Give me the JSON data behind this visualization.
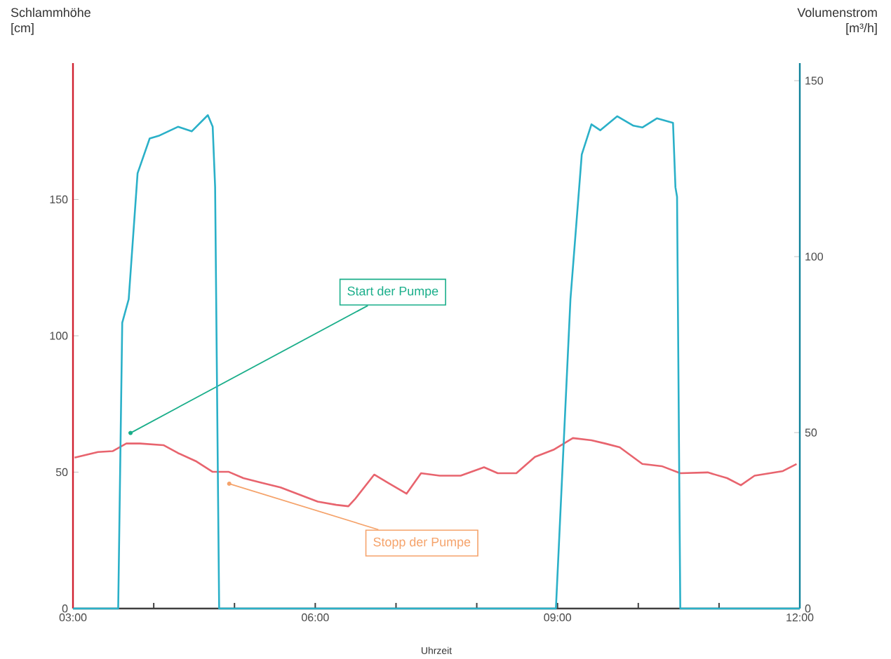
{
  "chart_data": {
    "type": "line",
    "xlabel": "Uhrzeit",
    "ylabel": "Schlammhöhe [cm]",
    "y2label": "Volumenstrom [m³/h]",
    "xlim": [
      3,
      12
    ],
    "xticks": [
      {
        "value": 3,
        "label": "03:00"
      },
      {
        "value": 4,
        "label": null
      },
      {
        "value": 5,
        "label": null
      },
      {
        "value": 6,
        "label": "06:00"
      },
      {
        "value": 7,
        "label": null
      },
      {
        "value": 8,
        "label": null
      },
      {
        "value": 9,
        "label": "09:00"
      },
      {
        "value": 10,
        "label": null
      },
      {
        "value": 11,
        "label": null
      },
      {
        "value": 12,
        "label": "12:00"
      }
    ],
    "ylim": [
      0,
      200
    ],
    "yticks": [
      0,
      50,
      100,
      150
    ],
    "y2lim": [
      0,
      155
    ],
    "y2ticks": [
      0,
      50,
      100,
      150
    ],
    "grid": false,
    "marker": "none",
    "line_style": "solid",
    "series": [
      {
        "color": "#e8646e",
        "x": [
          3.02,
          3.31,
          3.49,
          3.66,
          3.83,
          4.12,
          4.3,
          4.53,
          4.73,
          4.93,
          5.11,
          5.34,
          5.57,
          5.8,
          6.03,
          6.26,
          6.41,
          6.5,
          6.73,
          6.9,
          7.13,
          7.31,
          7.54,
          7.8,
          8.09,
          8.26,
          8.49,
          8.72,
          8.95,
          9.19,
          9.42,
          9.59,
          9.77,
          10.05,
          10.29,
          10.52,
          10.86,
          11.1,
          11.27,
          11.44,
          11.79,
          11.96
        ],
        "values": [
          55.3,
          57.4,
          57.7,
          60.5,
          60.5,
          59.9,
          57,
          53.9,
          50.1,
          50.1,
          47.8,
          46.1,
          44.4,
          41.8,
          39.2,
          38,
          37.5,
          40.4,
          49.1,
          46.1,
          42.1,
          49.6,
          48.7,
          48.7,
          51.8,
          49.6,
          49.6,
          55.6,
          58.2,
          62.5,
          61.7,
          60.5,
          59.1,
          53,
          52.2,
          49.6,
          49.9,
          47.8,
          45.2,
          48.7,
          50.4,
          53
        ]
      },
      {
        "color": "#2ab0c8",
        "axis": "y2",
        "x": [
          3.0,
          3.56,
          3.61,
          3.69,
          3.8,
          3.95,
          4.06,
          4.3,
          4.47,
          4.67,
          4.73,
          4.76,
          4.81,
          8.98,
          9.16,
          9.3,
          9.42,
          9.53,
          9.74,
          9.94,
          10.05,
          10.23,
          10.43,
          10.46,
          10.48,
          10.52,
          12.0
        ],
        "values": [
          0,
          0,
          81.2,
          87.9,
          123.7,
          133.6,
          134.3,
          136.9,
          135.6,
          140.2,
          136.9,
          119.8,
          0,
          0,
          87.9,
          129,
          137.6,
          135.9,
          139.9,
          137.2,
          136.7,
          139.3,
          138,
          119.7,
          117,
          0,
          0
        ]
      }
    ],
    "annotations": [
      {
        "text": "Start der Pumpe",
        "x": 3.69,
        "y": 64
      },
      {
        "text": "Stopp der Pumpe",
        "x": 4.91,
        "y": 46
      }
    ]
  }
}
